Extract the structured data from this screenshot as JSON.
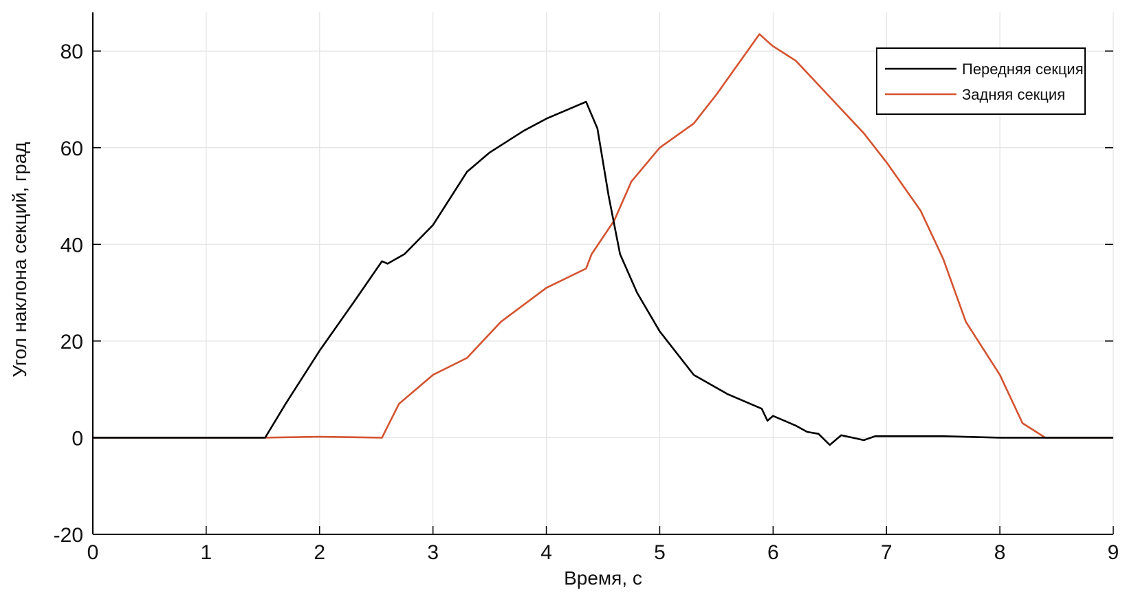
{
  "chart_data": {
    "type": "line",
    "xlabel": "Время, с",
    "ylabel": "Угол наклона секций, град",
    "xlim": [
      0,
      9
    ],
    "ylim": [
      -20,
      88
    ],
    "xticks": [
      0,
      1,
      2,
      3,
      4,
      5,
      6,
      7,
      8,
      9
    ],
    "yticks": [
      -20,
      0,
      20,
      40,
      60,
      80
    ],
    "grid": true,
    "legend_position": "top-right",
    "series": [
      {
        "name": "Передняя секция",
        "color": "#000000",
        "x": [
          0,
          1.0,
          1.52,
          1.7,
          2.0,
          2.3,
          2.55,
          2.6,
          2.75,
          3.0,
          3.3,
          3.5,
          3.8,
          4.0,
          4.2,
          4.35,
          4.45,
          4.55,
          4.65,
          4.8,
          5.0,
          5.3,
          5.6,
          5.9,
          5.95,
          6.0,
          6.1,
          6.2,
          6.3,
          6.4,
          6.5,
          6.6,
          6.7,
          6.8,
          6.9,
          7.0,
          7.5,
          8.0,
          8.4,
          9.0
        ],
        "y": [
          0,
          0,
          0,
          7,
          18,
          28,
          36.5,
          36,
          38,
          44,
          55,
          59,
          63.5,
          66,
          68,
          69.5,
          64,
          50,
          38,
          30,
          22,
          13,
          9,
          6,
          3.5,
          4.5,
          3.5,
          2.5,
          1.2,
          0.8,
          -1.5,
          0.5,
          0,
          -0.5,
          0.3,
          0.3,
          0.3,
          0,
          0,
          0
        ]
      },
      {
        "name": "Задняя секция",
        "color": "#d4532f",
        "x": [
          0,
          1.5,
          2.0,
          2.55,
          2.7,
          3.0,
          3.3,
          3.6,
          4.0,
          4.35,
          4.4,
          4.6,
          4.75,
          5.0,
          5.3,
          5.5,
          5.88,
          5.95,
          6.0,
          6.2,
          6.4,
          6.6,
          6.8,
          7.0,
          7.3,
          7.5,
          7.7,
          8.0,
          8.2,
          8.4,
          9.0
        ],
        "y": [
          0,
          0,
          0.2,
          0,
          7,
          13,
          16.5,
          24,
          31,
          35,
          38,
          45,
          53,
          60,
          65,
          71,
          83.5,
          82,
          81,
          78,
          73,
          68,
          63,
          57,
          47,
          37,
          24,
          13,
          3,
          0,
          0
        ]
      }
    ]
  }
}
